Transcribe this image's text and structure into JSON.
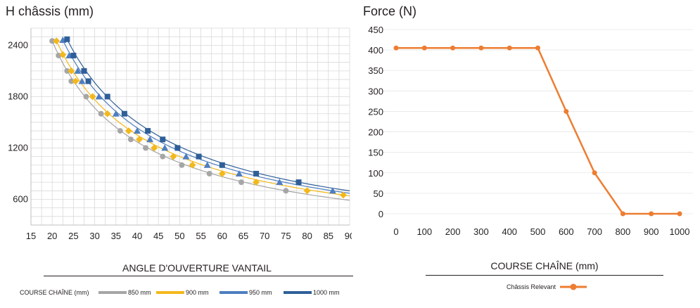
{
  "chart_data": [
    {
      "type": "scatter",
      "title": "H châssis (mm)",
      "xlabel": "ANGLE D'OUVERTURE VANTAIL",
      "xlim": [
        15,
        90
      ],
      "ylim": [
        300,
        2600
      ],
      "grid": true,
      "x_ticks": [
        15,
        20,
        25,
        30,
        35,
        40,
        45,
        50,
        55,
        60,
        65,
        70,
        75,
        80,
        85,
        90
      ],
      "y_ticks": [
        600,
        1200,
        1800,
        2400
      ],
      "legend_title": "COURSE CHAÎNE (mm)",
      "legend_position": "bottom",
      "series": [
        {
          "name": "850 mm",
          "color": "#a6a6a6",
          "marker": "circle",
          "x": [
            20,
            21.5,
            23.5,
            24.5,
            28,
            31.5,
            36,
            38.5,
            42,
            46,
            50.5,
            57,
            64.5,
            75
          ],
          "y": [
            2450,
            2280,
            2100,
            1980,
            1800,
            1600,
            1400,
            1300,
            1200,
            1100,
            1000,
            900,
            800,
            700
          ]
        },
        {
          "name": "900 mm",
          "color": "#f2b81c",
          "marker": "diamond",
          "x": [
            21,
            22.5,
            24.5,
            25.5,
            29.5,
            33,
            38,
            40.5,
            44,
            48.5,
            53,
            60,
            68,
            80,
            88.5
          ],
          "y": [
            2450,
            2290,
            2100,
            1980,
            1800,
            1600,
            1400,
            1300,
            1200,
            1100,
            1000,
            900,
            800,
            700,
            650
          ]
        },
        {
          "name": "950 mm",
          "color": "#4e7ec0",
          "marker": "triangle",
          "x": [
            22.5,
            24,
            26,
            27,
            31,
            35,
            40,
            43,
            46.5,
            51.5,
            56.5,
            64,
            73.5,
            86
          ],
          "y": [
            2460,
            2280,
            2100,
            1980,
            1800,
            1600,
            1400,
            1300,
            1200,
            1100,
            1000,
            900,
            800,
            700
          ]
        },
        {
          "name": "1000 mm",
          "color": "#2f5f98",
          "marker": "square",
          "x": [
            23.5,
            25,
            27.5,
            28.5,
            33,
            37,
            42.5,
            46,
            49.5,
            54.5,
            60,
            68,
            78
          ],
          "y": [
            2470,
            2280,
            2100,
            1980,
            1800,
            1600,
            1400,
            1300,
            1200,
            1100,
            1000,
            900,
            800
          ]
        }
      ]
    },
    {
      "type": "line",
      "title": "Force (N)",
      "xlabel": "COURSE CHAÎNE (mm)",
      "xlim": [
        0,
        1000
      ],
      "ylim": [
        0,
        450
      ],
      "grid": true,
      "x_ticks": [
        0,
        100,
        200,
        300,
        400,
        500,
        600,
        700,
        800,
        900,
        1000
      ],
      "y_ticks": [
        0,
        50,
        100,
        150,
        200,
        250,
        300,
        350,
        400,
        450
      ],
      "legend_position": "bottom",
      "series": [
        {
          "name": "Châssis Relevant",
          "color": "#ed7d31",
          "marker": "circle",
          "x": [
            0,
            100,
            200,
            300,
            400,
            500,
            600,
            700,
            800,
            900,
            1000
          ],
          "y": [
            405,
            405,
            405,
            405,
            405,
            405,
            250,
            100,
            0,
            0,
            0
          ]
        }
      ]
    }
  ]
}
